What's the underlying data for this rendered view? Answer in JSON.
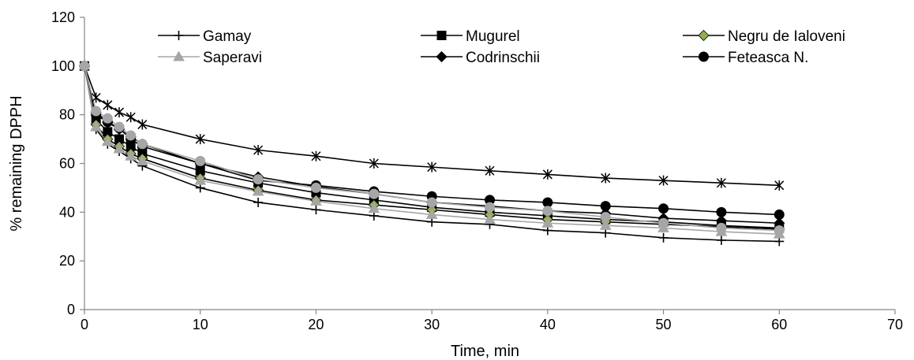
{
  "chart_data": {
    "type": "line",
    "xlabel": "Time, min",
    "ylabel": "% remaining DPPH",
    "xlim": [
      0,
      70
    ],
    "ylim": [
      0,
      120
    ],
    "xticks": [
      "0",
      "10",
      "20",
      "30",
      "40",
      "50",
      "60",
      "70"
    ],
    "yticks": [
      "0",
      "20",
      "40",
      "60",
      "80",
      "100",
      "120"
    ],
    "grid": false,
    "legend_position": "top",
    "x": [
      0,
      1,
      2,
      3,
      4,
      5,
      10,
      15,
      20,
      25,
      30,
      35,
      40,
      45,
      50,
      55,
      60
    ],
    "series": [
      {
        "name": "Gamay",
        "marker": "plus",
        "color": "#000000",
        "values": [
          100,
          74,
          68,
          65,
          62,
          59,
          50,
          44,
          41,
          38.5,
          36,
          35,
          32.5,
          31.5,
          29.5,
          28.5,
          28
        ]
      },
      {
        "name": "Mugurel",
        "marker": "square",
        "color": "#000000",
        "values": [
          100,
          78,
          73,
          70,
          67,
          64,
          57,
          52,
          48,
          45,
          42,
          40,
          38.5,
          37,
          36,
          34.5,
          33.5
        ]
      },
      {
        "name": "Negru de Ialoveni",
        "marker": "diamond",
        "color": "#92b050",
        "values": [
          100,
          76,
          70,
          67,
          64,
          62,
          54,
          49,
          45,
          43,
          41,
          39,
          37,
          36,
          35,
          34,
          33
        ]
      },
      {
        "name": "Saperavi",
        "marker": "triangle",
        "color": "#a6a6a6",
        "values": [
          100,
          75,
          69,
          66,
          63,
          61,
          53,
          48.5,
          44.5,
          41.5,
          39,
          37,
          35.5,
          34.5,
          33.5,
          32,
          31
        ]
      },
      {
        "name": "Codrinschii",
        "marker": "diamond",
        "color": "#000000",
        "values": [
          100,
          81,
          77,
          74,
          71,
          68,
          60,
          54.5,
          50.5,
          47.5,
          44,
          42.5,
          40.5,
          39.5,
          37.5,
          36.5,
          35.5
        ]
      },
      {
        "name": "Feteasca N.",
        "marker": "circle",
        "color": "#000000",
        "values": [
          100,
          80,
          77,
          74.5,
          70,
          67,
          60,
          53,
          51,
          48.5,
          46.5,
          45,
          44,
          42.5,
          41.5,
          40,
          39
        ]
      },
      {
        "name": "",
        "marker": "asterisk",
        "color": "#000000",
        "values": [
          100,
          87,
          84,
          81,
          79,
          76,
          70,
          65.5,
          63,
          60,
          58.5,
          57,
          55.5,
          54,
          53,
          52,
          51
        ]
      },
      {
        "name": "",
        "marker": "circle",
        "color": "#a6a6a6",
        "values": [
          100,
          81.5,
          78.5,
          75,
          71.5,
          68,
          61,
          53.5,
          50,
          47.5,
          44,
          42,
          40.5,
          38,
          35.5,
          33.5,
          32.5
        ]
      }
    ]
  }
}
